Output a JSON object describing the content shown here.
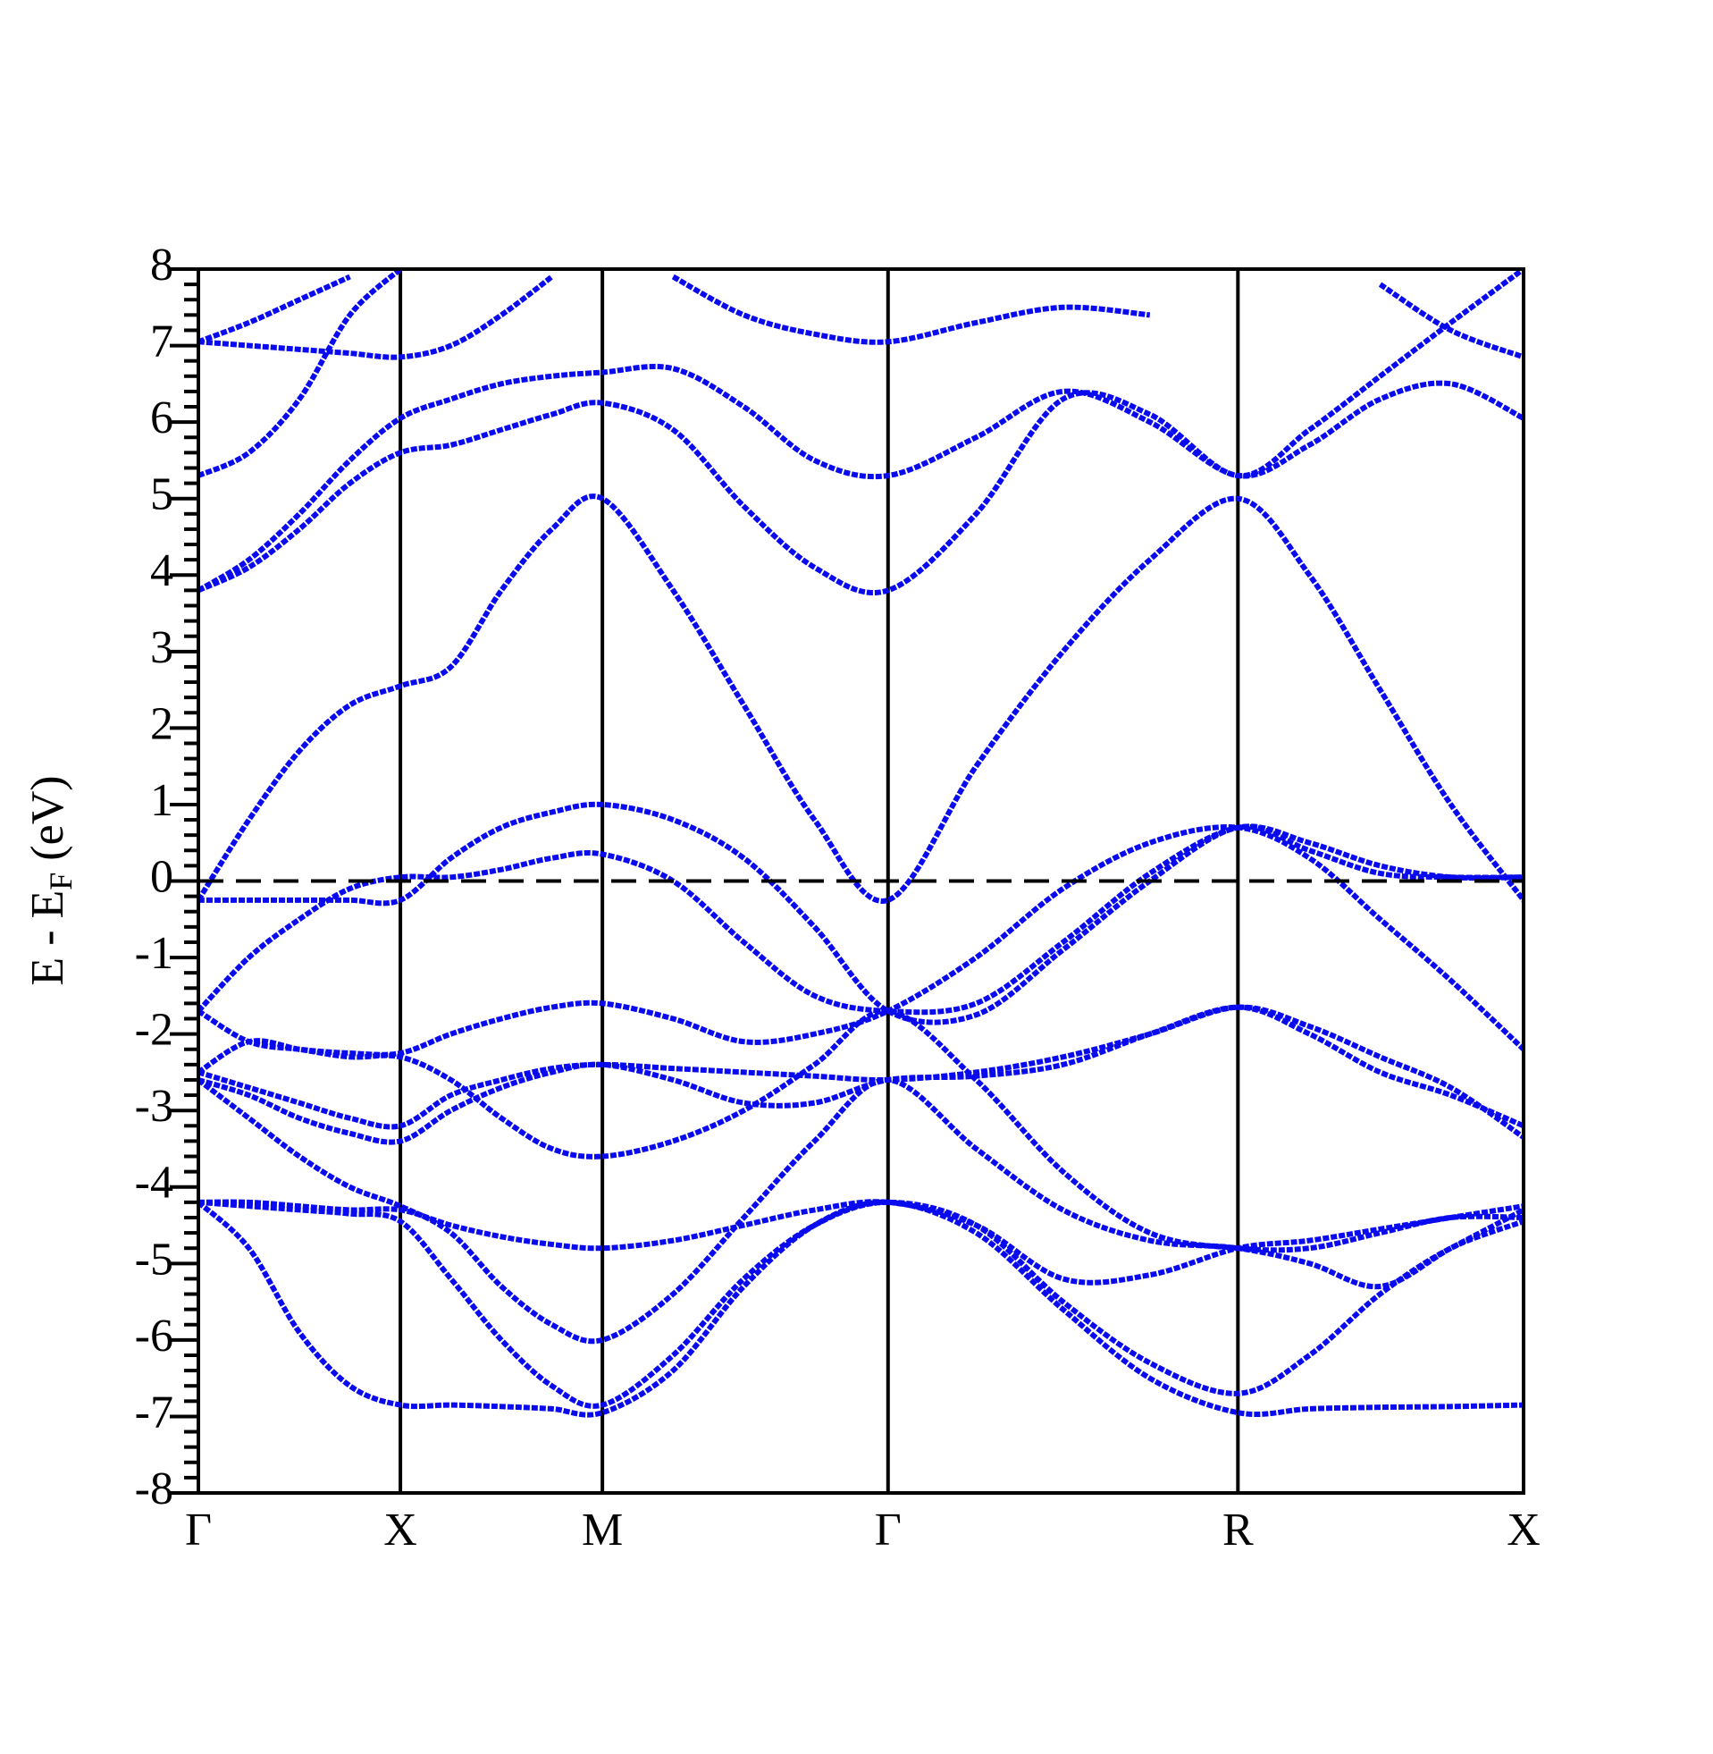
{
  "chart_data": {
    "type": "band",
    "ylabel_parts": [
      "E - E",
      "F",
      " (eV)"
    ],
    "color": "#0a0aee",
    "x": [
      0,
      0.25,
      0.5,
      0.75,
      1,
      1.25,
      1.5,
      1.75,
      2,
      2.35,
      2.7,
      3.05,
      3.414,
      3.85,
      4.28,
      4.71,
      5.146,
      5.5,
      5.85,
      6.2,
      6.56
    ],
    "xlim": [
      0,
      6.56
    ],
    "xticks": [
      {
        "value": 0,
        "label": "Γ"
      },
      {
        "value": 1,
        "label": "X"
      },
      {
        "value": 2,
        "label": "M"
      },
      {
        "value": 3.414,
        "label": "Γ"
      },
      {
        "value": 5.146,
        "label": "R"
      },
      {
        "value": 6.56,
        "label": "X"
      }
    ],
    "ylim": [
      -8,
      8
    ],
    "yticks": [
      -8,
      -7,
      -6,
      -5,
      -4,
      -3,
      -2,
      -1,
      0,
      1,
      2,
      3,
      4,
      5,
      6,
      7,
      8
    ],
    "y_minor_per_major": 4,
    "fermi_level": 0,
    "series": [
      {
        "values": [
          -4.2,
          -4.8,
          -5.9,
          -6.6,
          -6.85,
          -6.85,
          -6.87,
          -6.9,
          -6.95,
          -6.4,
          -5.3,
          -4.5,
          -4.2,
          -4.6,
          -5.6,
          -6.5,
          -6.95,
          -6.9,
          -6.88,
          -6.87,
          -6.85
        ]
      },
      {
        "values": [
          -4.2,
          -4.25,
          -4.3,
          -4.35,
          -4.45,
          -5.2,
          -6.0,
          -6.6,
          -6.85,
          -6.2,
          -5.2,
          -4.5,
          -4.2,
          -4.5,
          -5.5,
          -6.3,
          -6.7,
          -6.2,
          -5.4,
          -4.8,
          -4.45
        ]
      },
      {
        "values": [
          -2.6,
          -3.1,
          -3.6,
          -4.0,
          -4.25,
          -4.6,
          -5.3,
          -5.8,
          -6.0,
          -5.4,
          -4.4,
          -3.4,
          -2.6,
          -3.5,
          -4.3,
          -4.7,
          -4.8,
          -5.0,
          -5.3,
          -4.8,
          -4.3
        ]
      },
      {
        "values": [
          -4.2,
          -4.2,
          -4.25,
          -4.3,
          -4.3,
          -4.5,
          -4.65,
          -4.75,
          -4.8,
          -4.7,
          -4.5,
          -4.3,
          -4.2,
          -4.5,
          -5.2,
          -5.15,
          -4.8,
          -4.7,
          -4.55,
          -4.4,
          -4.25
        ]
      },
      {
        "values": [
          -2.6,
          -2.8,
          -3.1,
          -3.3,
          -3.4,
          -3.0,
          -2.7,
          -2.5,
          -2.4,
          -2.6,
          -2.9,
          -2.9,
          -2.6,
          -2.55,
          -2.4,
          -2.0,
          -1.65,
          -2.0,
          -2.5,
          -2.8,
          -3.2
        ]
      },
      {
        "values": [
          -2.5,
          -2.7,
          -2.9,
          -3.1,
          -3.2,
          -2.8,
          -2.6,
          -2.45,
          -2.4,
          -2.45,
          -2.5,
          -2.55,
          -2.6,
          -2.5,
          -2.3,
          -2.0,
          -1.65,
          -1.9,
          -2.3,
          -2.7,
          -3.35
        ]
      },
      {
        "values": [
          -2.5,
          -2.1,
          -2.2,
          -2.3,
          -2.3,
          -2.6,
          -3.1,
          -3.5,
          -3.6,
          -3.4,
          -3.0,
          -2.4,
          -1.7,
          -2.6,
          -3.8,
          -4.6,
          -4.8,
          -4.8,
          -4.6,
          -4.4,
          -4.4
        ]
      },
      {
        "values": [
          -1.7,
          -1.0,
          -0.5,
          -0.1,
          0.05,
          0.05,
          0.15,
          0.3,
          0.35,
          0.0,
          -0.8,
          -1.5,
          -1.7,
          -1.6,
          -0.8,
          0.1,
          0.7,
          0.5,
          0.2,
          0.05,
          0.05
        ]
      },
      {
        "values": [
          -1.7,
          -2.1,
          -2.2,
          -2.25,
          -2.25,
          -2.0,
          -1.8,
          -1.65,
          -1.6,
          -1.8,
          -2.1,
          -2.0,
          -1.7,
          -1.0,
          -0.1,
          0.5,
          0.7,
          0.3,
          -0.5,
          -1.3,
          -2.2
        ]
      },
      {
        "values": [
          -0.25,
          -0.25,
          -0.25,
          -0.25,
          -0.25,
          0.3,
          0.7,
          0.9,
          1.0,
          0.8,
          0.3,
          -0.6,
          -1.7,
          -1.75,
          -0.9,
          0.0,
          0.7,
          0.4,
          0.1,
          0.05,
          0.05
        ]
      },
      {
        "values": [
          -0.25,
          0.8,
          1.7,
          2.3,
          2.55,
          2.8,
          3.8,
          4.6,
          5.0,
          3.8,
          2.3,
          0.8,
          -0.25,
          1.5,
          3.0,
          4.2,
          5.0,
          4.0,
          2.5,
          1.0,
          -0.25
        ]
      },
      {
        "values": [
          3.8,
          4.1,
          4.6,
          5.2,
          5.6,
          5.7,
          5.9,
          6.1,
          6.25,
          5.9,
          4.9,
          4.1,
          3.8,
          4.8,
          6.3,
          6.1,
          5.3,
          5.9,
          6.6,
          7.3,
          8.0
        ]
      },
      {
        "values": [
          3.8,
          4.2,
          4.8,
          5.5,
          6.05,
          6.3,
          6.5,
          6.6,
          6.65,
          6.7,
          6.2,
          5.5,
          5.3,
          5.8,
          6.4,
          6.0,
          5.3,
          5.7,
          6.3,
          6.5,
          6.05
        ]
      },
      {
        "values": [
          5.3,
          5.6,
          6.3,
          7.4,
          8.0,
          null,
          null,
          null,
          null,
          null,
          null,
          null,
          null,
          null,
          null,
          null,
          null,
          null,
          null,
          null,
          null
        ]
      },
      {
        "values": [
          7.05,
          7.0,
          6.95,
          6.9,
          6.85,
          7.0,
          7.4,
          7.9,
          null,
          7.9,
          7.4,
          7.15,
          7.05,
          7.3,
          7.5,
          7.4,
          null,
          null,
          7.8,
          7.2,
          6.85
        ]
      },
      {
        "values": [
          7.05,
          7.3,
          7.6,
          7.9,
          null,
          null,
          null,
          null,
          null,
          null,
          null,
          null,
          null,
          null,
          null,
          null,
          null,
          null,
          null,
          null,
          null
        ]
      }
    ]
  }
}
